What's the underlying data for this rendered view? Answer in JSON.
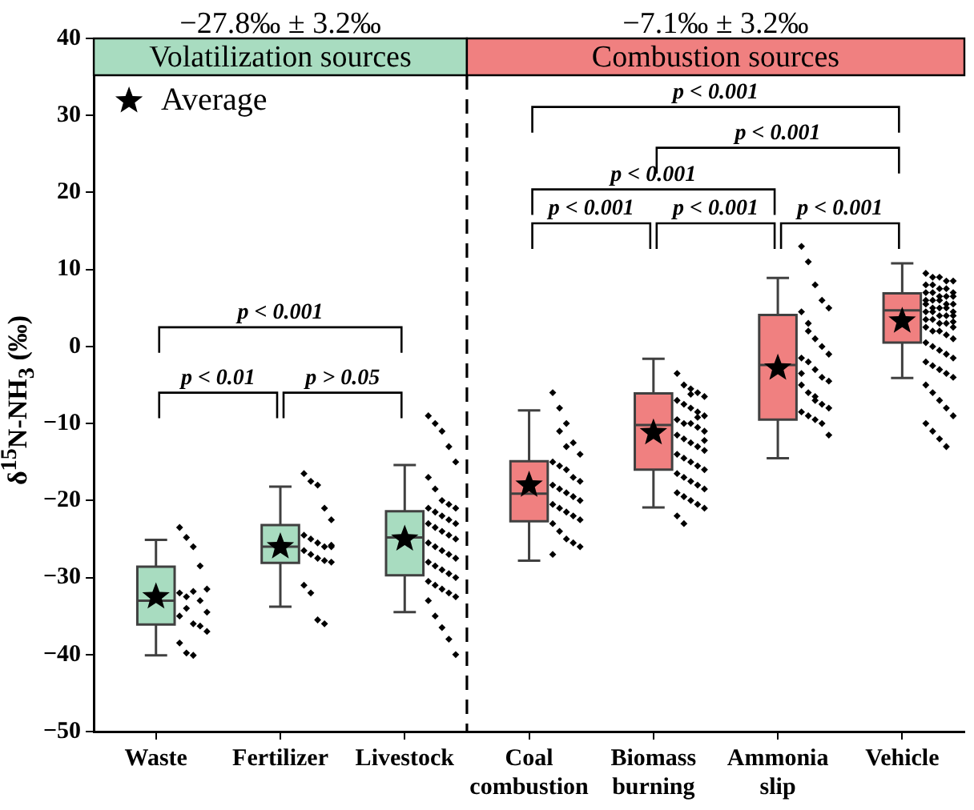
{
  "chart_data": {
    "type": "box",
    "ylabel": "δ$^{15}$N-NH$_{3}$ (‰)",
    "categories": [
      "Waste",
      "Fertilizer",
      "Livestock",
      "Coal combustion",
      "Biomass burning",
      "Ammonia slip",
      "Vehicle"
    ],
    "ylim": [
      -50,
      40
    ],
    "yticks": [
      -50,
      -40,
      -30,
      -20,
      -10,
      0,
      10,
      20,
      30,
      40
    ],
    "legend": "top left",
    "bands": [
      {
        "axis": "x",
        "from": "Waste",
        "to": "Livestock",
        "label": "Volatilization sources",
        "color": "#a8dcc0"
      },
      {
        "axis": "x",
        "from": "Coal combustion",
        "to": "Vehicle",
        "label": "Combustion sources",
        "color": "#f08080"
      }
    ],
    "annotations": [
      "−27.8‰ ± 3.2‰",
      "−7.1‰ ± 3.2‰",
      "p < 0.01",
      "p > 0.05",
      "p < 0.001",
      "p < 0.001",
      "p < 0.001",
      "p < 0.001",
      "p < 0.001",
      "p < 0.001",
      "p < 0.001"
    ],
    "series": [
      {
        "type": "box",
        "colors": [
          "#a8dcc0",
          "#a8dcc0",
          "#a8dcc0",
          "#f08080",
          "#f08080",
          "#f08080",
          "#f08080"
        ],
        "boxes": [
          {
            "low": -40.1,
            "q1": -36.1,
            "median": -33,
            "q3": -28.6,
            "high": -25.1
          },
          {
            "low": -33.8,
            "q1": -28.1,
            "median": -26,
            "q3": -23.2,
            "high": -18.2
          },
          {
            "low": -34.5,
            "q1": -29.7,
            "median": -24.8,
            "q3": -21.4,
            "high": -15.4
          },
          {
            "low": -27.8,
            "q1": -22.7,
            "median": -19.1,
            "q3": -14.9,
            "high": -8.3
          },
          {
            "low": -20.9,
            "q1": -16,
            "median": -10.2,
            "q3": -6.1,
            "high": -1.6
          },
          {
            "low": -14.5,
            "q1": -9.5,
            "median": -2.4,
            "q3": 4.1,
            "high": 8.9
          },
          {
            "low": -4.1,
            "q1": 0.5,
            "median": 4.7,
            "q3": 6.9,
            "high": 10.8
          }
        ]
      },
      {
        "type": "scatter",
        "name": "Average",
        "color": "#000000",
        "marker": "star",
        "x": [
          "Waste",
          "Fertilizer",
          "Livestock",
          "Coal combustion",
          "Biomass burning",
          "Ammonia slip",
          "Vehicle"
        ],
        "values": [
          -32.5,
          -26,
          -25,
          -18,
          -11.2,
          -2.8,
          3.3
        ]
      },
      {
        "type": "scatter",
        "color": "#000000",
        "marker": "diamond",
        "x": [
          "Waste",
          "Waste",
          "Waste",
          "Waste",
          "Waste",
          "Waste",
          "Waste",
          "Waste",
          "Waste",
          "Waste",
          "Waste",
          "Waste",
          "Waste",
          "Waste",
          "Waste",
          "Waste",
          "Waste",
          "Waste"
        ],
        "values": [
          -23.5,
          -24.8,
          -26,
          -28.5,
          -31.5,
          -32,
          -32.5,
          -31.8,
          -33,
          -34.5,
          -35,
          -34,
          -36,
          -36.3,
          -37,
          -38.5,
          -39.8,
          -40.1
        ]
      },
      {
        "type": "scatter",
        "color": "#000000",
        "marker": "diamond",
        "x": [
          "Fertilizer",
          "Fertilizer",
          "Fertilizer",
          "Fertilizer",
          "Fertilizer",
          "Fertilizer",
          "Fertilizer",
          "Fertilizer",
          "Fertilizer",
          "Fertilizer",
          "Fertilizer",
          "Fertilizer",
          "Fertilizer",
          "Fertilizer",
          "Fertilizer",
          "Fertilizer",
          "Fertilizer",
          "Fertilizer",
          "Fertilizer",
          "Fertilizer"
        ],
        "values": [
          -16.5,
          -17.5,
          -18,
          -21,
          -22.5,
          -24.5,
          -25,
          -25.5,
          -26,
          -26,
          -26.5,
          -27,
          -27.5,
          -27.8,
          -28,
          -31,
          -32,
          -35.5,
          -36,
          -25.8
        ]
      },
      {
        "type": "scatter",
        "color": "#000000",
        "marker": "diamond",
        "x": [
          "Livestock",
          "Livestock",
          "Livestock",
          "Livestock",
          "Livestock",
          "Livestock",
          "Livestock",
          "Livestock",
          "Livestock",
          "Livestock",
          "Livestock",
          "Livestock",
          "Livestock",
          "Livestock",
          "Livestock",
          "Livestock",
          "Livestock",
          "Livestock",
          "Livestock",
          "Livestock",
          "Livestock",
          "Livestock",
          "Livestock",
          "Livestock",
          "Livestock",
          "Livestock",
          "Livestock",
          "Livestock",
          "Livestock",
          "Livestock",
          "Livestock",
          "Livestock",
          "Livestock",
          "Livestock",
          "Livestock",
          "Livestock",
          "Livestock",
          "Livestock",
          "Livestock",
          "Livestock"
        ],
        "values": [
          -9,
          -10,
          -11,
          -13,
          -15,
          -17,
          -18.5,
          -20,
          -20.5,
          -21,
          -21,
          -21.5,
          -22,
          -22.5,
          -23,
          -23,
          -23.5,
          -24,
          -24.5,
          -25,
          -25.5,
          -26,
          -26.5,
          -27,
          -27.5,
          -28,
          -28.5,
          -29,
          -29.5,
          -30,
          -30.5,
          -31,
          -31.5,
          -32,
          -32.5,
          -33,
          -35,
          -36.5,
          -38,
          -40
        ]
      },
      {
        "type": "scatter",
        "color": "#000000",
        "marker": "diamond",
        "x": [
          "Coal combustion",
          "Coal combustion",
          "Coal combustion",
          "Coal combustion",
          "Coal combustion",
          "Coal combustion",
          "Coal combustion",
          "Coal combustion",
          "Coal combustion",
          "Coal combustion",
          "Coal combustion",
          "Coal combustion",
          "Coal combustion",
          "Coal combustion",
          "Coal combustion",
          "Coal combustion",
          "Coal combustion",
          "Coal combustion",
          "Coal combustion",
          "Coal combustion",
          "Coal combustion",
          "Coal combustion",
          "Coal combustion",
          "Coal combustion",
          "Coal combustion",
          "Coal combustion",
          "Coal combustion",
          "Coal combustion"
        ],
        "values": [
          -6,
          -8,
          -10,
          -12.5,
          -14,
          -15,
          -15.5,
          -16,
          -17,
          -17.5,
          -18,
          -18.5,
          -19,
          -19.5,
          -20,
          -20.5,
          -21,
          -21.5,
          -22,
          -22.5,
          -23,
          -24,
          -25,
          -25.5,
          -26,
          -27,
          -11,
          -13
        ]
      },
      {
        "type": "scatter",
        "color": "#000000",
        "marker": "diamond",
        "x": [
          "Biomass burning",
          "Biomass burning",
          "Biomass burning",
          "Biomass burning",
          "Biomass burning",
          "Biomass burning",
          "Biomass burning",
          "Biomass burning",
          "Biomass burning",
          "Biomass burning",
          "Biomass burning",
          "Biomass burning",
          "Biomass burning",
          "Biomass burning",
          "Biomass burning",
          "Biomass burning",
          "Biomass burning",
          "Biomass burning",
          "Biomass burning",
          "Biomass burning",
          "Biomass burning",
          "Biomass burning",
          "Biomass burning",
          "Biomass burning",
          "Biomass burning",
          "Biomass burning",
          "Biomass burning",
          "Biomass burning",
          "Biomass burning",
          "Biomass burning",
          "Biomass burning",
          "Biomass burning",
          "Biomass burning",
          "Biomass burning",
          "Biomass burning",
          "Biomass burning",
          "Biomass burning",
          "Biomass burning",
          "Biomass burning",
          "Biomass burning"
        ],
        "values": [
          -3.5,
          -5,
          -5.5,
          -6,
          -6.5,
          -7,
          -7.5,
          -8,
          -8.5,
          -9,
          -9.5,
          -10,
          -10,
          -10.5,
          -11,
          -11.5,
          -12,
          -12.5,
          -13,
          -13.5,
          -14,
          -14.5,
          -15,
          -15.5,
          -16,
          -16.5,
          -17,
          -17.5,
          -18,
          -18.5,
          -19,
          -19.5,
          -20,
          -20.5,
          -21,
          -22,
          -23,
          -6.2,
          -9.2,
          -12.2
        ]
      },
      {
        "type": "scatter",
        "color": "#000000",
        "marker": "diamond",
        "x": [
          "Ammonia slip",
          "Ammonia slip",
          "Ammonia slip",
          "Ammonia slip",
          "Ammonia slip",
          "Ammonia slip",
          "Ammonia slip",
          "Ammonia slip",
          "Ammonia slip",
          "Ammonia slip",
          "Ammonia slip",
          "Ammonia slip",
          "Ammonia slip",
          "Ammonia slip",
          "Ammonia slip",
          "Ammonia slip",
          "Ammonia slip",
          "Ammonia slip",
          "Ammonia slip",
          "Ammonia slip",
          "Ammonia slip",
          "Ammonia slip",
          "Ammonia slip",
          "Ammonia slip",
          "Ammonia slip",
          "Ammonia slip",
          "Ammonia slip",
          "Ammonia slip"
        ],
        "values": [
          13,
          11,
          8,
          6,
          5,
          4.5,
          3,
          1,
          0,
          -1,
          -1.5,
          -2,
          -3,
          -4,
          -4.5,
          -5,
          -6,
          -7,
          -7.5,
          -8,
          -8.5,
          -9,
          -9.5,
          -10,
          -11.5,
          -3.5,
          2,
          -6.5
        ]
      },
      {
        "type": "scatter",
        "color": "#000000",
        "marker": "diamond",
        "x": [
          "Vehicle",
          "Vehicle",
          "Vehicle",
          "Vehicle",
          "Vehicle",
          "Vehicle",
          "Vehicle",
          "Vehicle",
          "Vehicle",
          "Vehicle",
          "Vehicle",
          "Vehicle",
          "Vehicle",
          "Vehicle",
          "Vehicle",
          "Vehicle",
          "Vehicle",
          "Vehicle",
          "Vehicle",
          "Vehicle",
          "Vehicle",
          "Vehicle",
          "Vehicle",
          "Vehicle",
          "Vehicle",
          "Vehicle",
          "Vehicle",
          "Vehicle",
          "Vehicle",
          "Vehicle",
          "Vehicle",
          "Vehicle",
          "Vehicle",
          "Vehicle",
          "Vehicle",
          "Vehicle",
          "Vehicle",
          "Vehicle",
          "Vehicle",
          "Vehicle",
          "Vehicle",
          "Vehicle",
          "Vehicle",
          "Vehicle",
          "Vehicle",
          "Vehicle",
          "Vehicle",
          "Vehicle",
          "Vehicle",
          "Vehicle",
          "Vehicle",
          "Vehicle",
          "Vehicle",
          "Vehicle",
          "Vehicle",
          "Vehicle",
          "Vehicle",
          "Vehicle",
          "Vehicle",
          "Vehicle"
        ],
        "values": [
          9.5,
          9,
          9,
          8.5,
          8.5,
          8,
          8,
          7.5,
          7.5,
          7,
          7,
          7,
          6.5,
          6.5,
          6.5,
          6,
          6,
          6,
          5.5,
          5.5,
          5.5,
          5,
          5,
          5,
          4.5,
          4.5,
          4.5,
          4,
          4,
          4,
          3.5,
          3.5,
          3,
          3,
          2.5,
          2.5,
          2,
          2,
          1.5,
          1,
          0.5,
          0,
          -0.5,
          -1,
          -1.5,
          -2,
          -2.5,
          -3,
          -3.5,
          -4,
          -5,
          -6,
          -7,
          -8,
          -9,
          -10,
          -11,
          -12,
          -13,
          3.2
        ]
      }
    ]
  }
}
